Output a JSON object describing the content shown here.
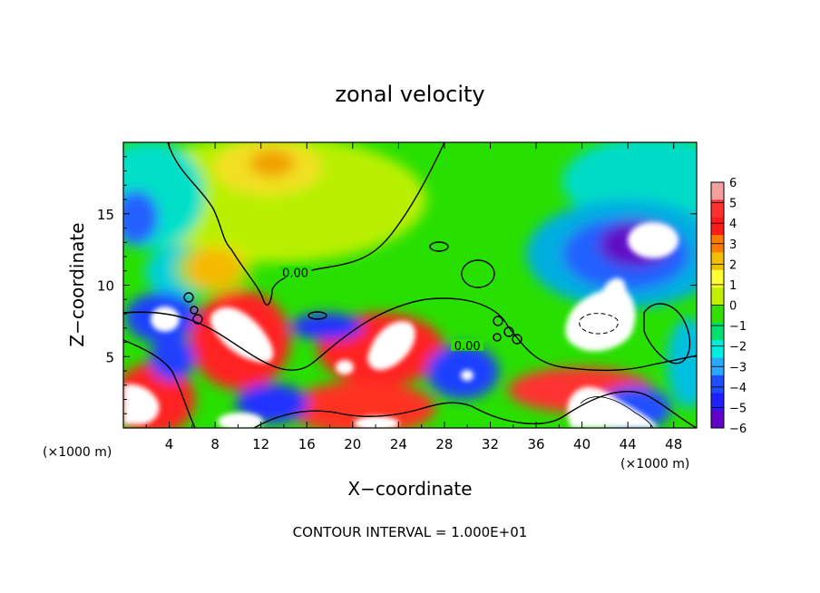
{
  "chart_data": {
    "type": "heatmap",
    "title": "zonal velocity",
    "xlabel": "X−coordinate",
    "ylabel": "Z−coordinate",
    "x_units_left": "(×1000 m)",
    "x_units_right": "(×1000 m)",
    "footer": "CONTOUR INTERVAL = 1.000E+01",
    "xlim": [
      0,
      50
    ],
    "ylim": [
      0,
      20
    ],
    "x_ticks": [
      4,
      8,
      12,
      16,
      20,
      24,
      28,
      32,
      36,
      40,
      44,
      48
    ],
    "y_ticks": [
      5,
      10,
      15
    ],
    "colorbar": {
      "ticks": [
        6,
        5,
        4,
        3,
        2,
        1,
        0,
        -1,
        -2,
        -3,
        -4,
        -5,
        -6
      ],
      "colors": [
        "#f4a0a0",
        "#ff3030",
        "#ff1a1a",
        "#ff7a00",
        "#f0c000",
        "#ffff33",
        "#c0f000",
        "#33e000",
        "#00e070",
        "#00eedd",
        "#2aa8ff",
        "#1d4fff",
        "#2020ff",
        "#6000c8"
      ]
    },
    "contour_labels": [
      {
        "text": "0.00",
        "x": 15,
        "y": 10.7
      },
      {
        "text": "0.00",
        "x": 30,
        "y": 5.6
      }
    ],
    "features": [
      {
        "kind": "positive",
        "x": 9,
        "y": 7.5,
        "value": 6
      },
      {
        "kind": "positive",
        "x": 24,
        "y": 6,
        "value": 6
      },
      {
        "kind": "positive",
        "x": 2,
        "y": 2,
        "value": 6
      },
      {
        "kind": "positive",
        "x": 11,
        "y": 18.5,
        "value": 2
      },
      {
        "kind": "negative",
        "x": 45,
        "y": 13.5,
        "value": -6
      },
      {
        "kind": "negative",
        "x": 40.5,
        "y": 8,
        "value": -6
      },
      {
        "kind": "negative",
        "x": 3.5,
        "y": 7.5,
        "value": -6
      }
    ]
  }
}
